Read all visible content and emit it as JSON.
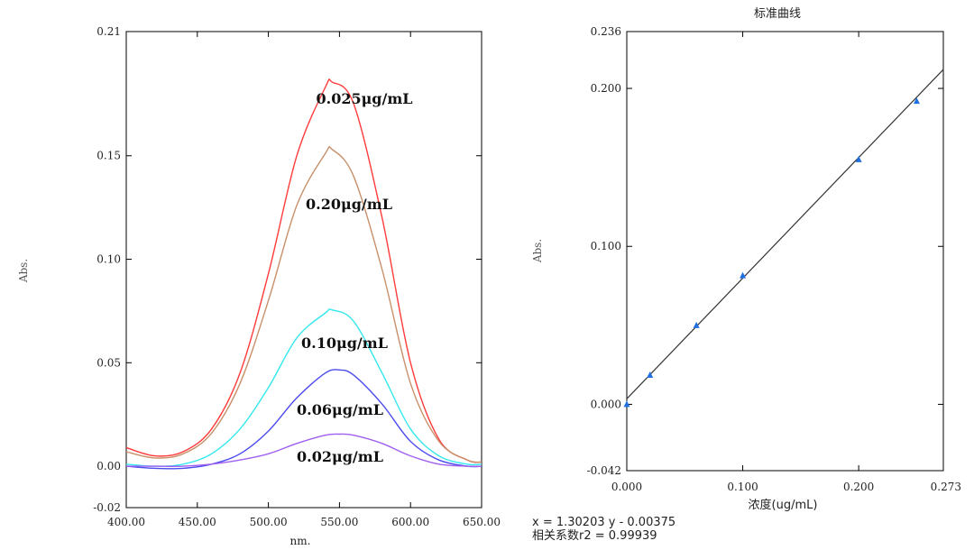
{
  "colors": {
    "axis": "#000000",
    "fit_line": "#333333",
    "marker": "#1f6fe0",
    "series": [
      "#ff3b3b",
      "#c8906a",
      "#33e8ee",
      "#4b4bee",
      "#9f5ff0"
    ]
  },
  "chart_data": [
    {
      "type": "line",
      "title": "",
      "xlabel": "nm.",
      "ylabel": "Abs.",
      "xlim": [
        400,
        650
      ],
      "ylim": [
        -0.02,
        0.21
      ],
      "x_ticks": [
        "400.00",
        "450.00",
        "500.00",
        "550.00",
        "600.00",
        "650.00"
      ],
      "y_ticks": [
        "0.21",
        "0.15",
        "0.10",
        "0.05",
        "0.00",
        "-0.02"
      ],
      "grid": false,
      "annotations": [
        "0.025μg/mL",
        "0.20μg/mL",
        "0.10μg/mL",
        "0.06μg/mL",
        "0.02μg/mL"
      ],
      "series": [
        {
          "x": [
            400,
            420,
            440,
            460,
            480,
            500,
            520,
            540,
            545,
            560,
            580,
            600,
            620,
            640,
            650
          ],
          "values": [
            0.009,
            0.005,
            0.007,
            0.018,
            0.045,
            0.093,
            0.15,
            0.183,
            0.1855,
            0.175,
            0.12,
            0.05,
            0.013,
            0.003,
            0.002
          ]
        },
        {
          "x": [
            400,
            420,
            440,
            460,
            480,
            500,
            520,
            540,
            545,
            560,
            580,
            600,
            620,
            640,
            650
          ],
          "values": [
            0.007,
            0.004,
            0.006,
            0.016,
            0.04,
            0.08,
            0.126,
            0.151,
            0.153,
            0.14,
            0.095,
            0.04,
            0.012,
            0.003,
            0.002
          ]
        },
        {
          "x": [
            400,
            420,
            440,
            460,
            480,
            500,
            520,
            540,
            545,
            560,
            580,
            600,
            620,
            640,
            650
          ],
          "values": [
            0.001,
            0.0,
            0.001,
            0.006,
            0.018,
            0.038,
            0.062,
            0.074,
            0.0755,
            0.07,
            0.045,
            0.018,
            0.005,
            0.001,
            0.001
          ]
        },
        {
          "x": [
            400,
            420,
            440,
            460,
            480,
            500,
            520,
            540,
            550,
            560,
            580,
            600,
            620,
            640,
            650
          ],
          "values": [
            0.0,
            -0.001,
            -0.001,
            0.001,
            0.006,
            0.017,
            0.033,
            0.045,
            0.0465,
            0.044,
            0.03,
            0.012,
            0.003,
            0.0,
            0.0
          ]
        },
        {
          "x": [
            400,
            420,
            440,
            460,
            480,
            500,
            520,
            540,
            550,
            560,
            580,
            600,
            620,
            640,
            650
          ],
          "values": [
            0.0,
            0.0,
            0.0,
            0.001,
            0.003,
            0.006,
            0.011,
            0.015,
            0.0155,
            0.015,
            0.011,
            0.005,
            0.001,
            0.0,
            0.0
          ]
        }
      ]
    },
    {
      "type": "scatter",
      "title": "标准曲线",
      "xlabel": "浓度(ug/mL)",
      "ylabel": "Abs.",
      "xlim": [
        0.0,
        0.273
      ],
      "ylim": [
        -0.042,
        0.236
      ],
      "x_ticks": [
        "0.000",
        "0.100",
        "0.200",
        "0.273"
      ],
      "y_ticks": [
        "0.236",
        "0.200",
        "0.100",
        "0.000",
        "-0.042"
      ],
      "grid": false,
      "points": {
        "x": [
          0.0,
          0.02,
          0.06,
          0.1,
          0.2,
          0.25
        ],
        "values": [
          0.0,
          0.0185,
          0.05,
          0.0815,
          0.155,
          0.192
        ]
      },
      "fit_line": {
        "x": [
          0.0,
          0.273
        ],
        "values": [
          0.0035,
          0.212
        ]
      },
      "equation": "x = 1.30203 y - 0.00375",
      "r2": "相关系数r2 = 0.99939"
    }
  ]
}
